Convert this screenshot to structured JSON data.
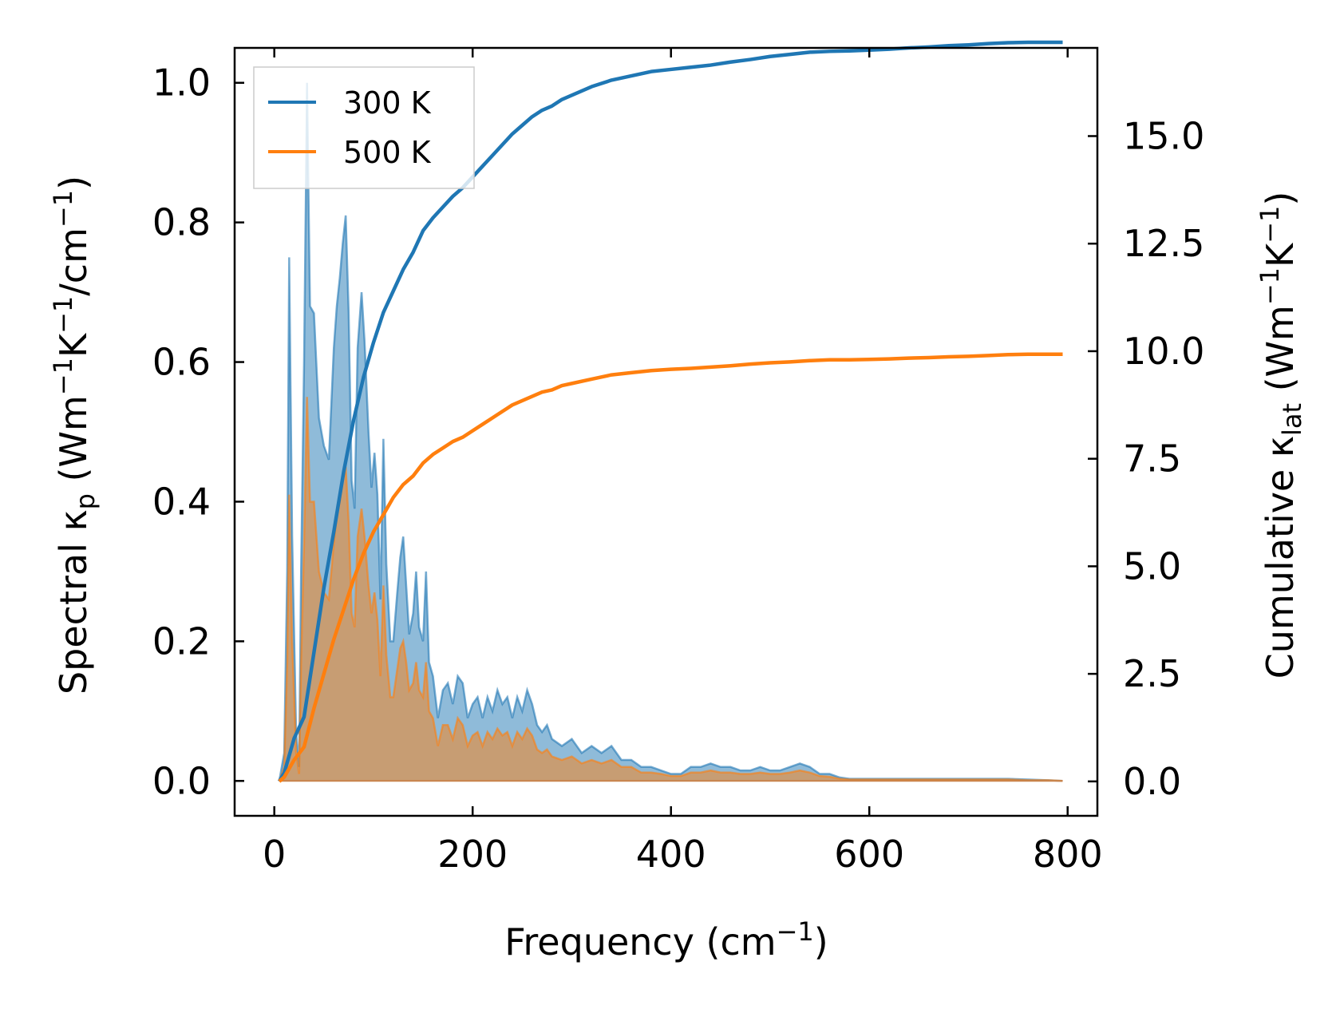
{
  "chart_data": {
    "type": "line",
    "title": "",
    "xlabel": {
      "text": "Frequency (cm",
      "sup": "−1",
      "tail": ")"
    },
    "ylabel_left": {
      "p1": "Spectral κ",
      "sub": "p",
      "p2": " (Wm",
      "s1": "−1",
      "p3": "K",
      "s2": "−1",
      "p4": "/cm",
      "s3": "−1",
      "p5": ")"
    },
    "ylabel_right": {
      "p1": "Cumulative κ",
      "sub": "lat",
      "p2": " (Wm",
      "s1": "−1",
      "p3": "K",
      "s2": "−1",
      "p4": ")"
    },
    "xlim": [
      -40,
      830
    ],
    "ylim_left": [
      -0.05,
      1.05
    ],
    "ylim_right": [
      -0.8,
      17.05
    ],
    "x_ticks": [
      0,
      200,
      400,
      600,
      800
    ],
    "x_tick_labels": [
      "0",
      "200",
      "400",
      "600",
      "800"
    ],
    "y_left_ticks": [
      0.0,
      0.2,
      0.4,
      0.6,
      0.8,
      1.0
    ],
    "y_left_tick_labels": [
      "0.0",
      "0.2",
      "0.4",
      "0.6",
      "0.8",
      "1.0"
    ],
    "y_right_ticks": [
      0.0,
      2.5,
      5.0,
      7.5,
      10.0,
      12.5,
      15.0
    ],
    "y_right_tick_labels": [
      "0.0",
      "2.5",
      "5.0",
      "7.5",
      "10.0",
      "12.5",
      "15.0"
    ],
    "legend": {
      "position": "upper-left",
      "entries": [
        "300 K",
        "500 K"
      ]
    },
    "series": [
      {
        "name": "300 K",
        "color": "#1f77b4",
        "fill_color": "#1f77b4",
        "spectral": {
          "x": [
            5,
            10,
            13,
            15,
            18,
            22,
            25,
            27,
            30,
            33,
            36,
            40,
            45,
            50,
            55,
            60,
            63,
            66,
            69,
            72,
            75,
            78,
            81,
            84,
            88,
            91,
            95,
            98,
            101,
            104,
            107,
            110,
            113,
            117,
            120,
            124,
            127,
            130,
            133,
            136,
            140,
            143,
            146,
            150,
            153,
            156,
            160,
            165,
            170,
            175,
            180,
            185,
            190,
            195,
            200,
            205,
            210,
            215,
            220,
            225,
            230,
            235,
            240,
            245,
            250,
            255,
            260,
            265,
            270,
            275,
            280,
            290,
            300,
            310,
            320,
            330,
            340,
            350,
            360,
            370,
            380,
            390,
            400,
            410,
            420,
            430,
            440,
            450,
            460,
            470,
            480,
            490,
            500,
            510,
            520,
            530,
            540,
            550,
            560,
            570,
            580,
            590,
            600,
            620,
            640,
            660,
            680,
            700,
            720,
            740,
            760,
            780,
            795
          ],
          "y": [
            0.0,
            0.04,
            0.3,
            0.75,
            0.35,
            0.07,
            0.02,
            0.3,
            0.6,
            1.0,
            0.68,
            0.67,
            0.52,
            0.48,
            0.46,
            0.62,
            0.68,
            0.72,
            0.77,
            0.81,
            0.67,
            0.43,
            0.39,
            0.62,
            0.7,
            0.63,
            0.5,
            0.42,
            0.47,
            0.41,
            0.26,
            0.49,
            0.31,
            0.2,
            0.2,
            0.27,
            0.32,
            0.35,
            0.28,
            0.21,
            0.24,
            0.3,
            0.22,
            0.2,
            0.3,
            0.17,
            0.15,
            0.09,
            0.13,
            0.14,
            0.11,
            0.15,
            0.14,
            0.09,
            0.11,
            0.12,
            0.09,
            0.12,
            0.1,
            0.13,
            0.11,
            0.12,
            0.09,
            0.12,
            0.1,
            0.13,
            0.11,
            0.08,
            0.07,
            0.08,
            0.06,
            0.05,
            0.06,
            0.04,
            0.05,
            0.04,
            0.05,
            0.03,
            0.03,
            0.02,
            0.02,
            0.015,
            0.01,
            0.01,
            0.02,
            0.02,
            0.025,
            0.02,
            0.02,
            0.015,
            0.015,
            0.02,
            0.015,
            0.015,
            0.02,
            0.025,
            0.02,
            0.01,
            0.01,
            0.005,
            0.003,
            0.003,
            0.003,
            0.003,
            0.003,
            0.003,
            0.003,
            0.003,
            0.003,
            0.003,
            0.002,
            0.001,
            0.0
          ]
        },
        "cumulative": {
          "x": [
            5,
            10,
            20,
            30,
            40,
            50,
            60,
            70,
            80,
            90,
            100,
            110,
            120,
            130,
            140,
            150,
            160,
            170,
            180,
            190,
            200,
            210,
            220,
            230,
            240,
            250,
            260,
            270,
            280,
            290,
            300,
            320,
            340,
            360,
            380,
            400,
            420,
            440,
            460,
            480,
            500,
            520,
            540,
            560,
            580,
            600,
            620,
            640,
            660,
            680,
            700,
            720,
            740,
            760,
            780,
            795
          ],
          "y": [
            0.0,
            0.2,
            1.0,
            1.5,
            3.0,
            4.5,
            5.8,
            7.2,
            8.4,
            9.4,
            10.2,
            10.9,
            11.4,
            11.9,
            12.3,
            12.8,
            13.1,
            13.35,
            13.6,
            13.8,
            14.05,
            14.3,
            14.55,
            14.8,
            15.05,
            15.25,
            15.45,
            15.6,
            15.7,
            15.85,
            15.95,
            16.15,
            16.3,
            16.4,
            16.5,
            16.55,
            16.6,
            16.65,
            16.72,
            16.78,
            16.85,
            16.9,
            16.95,
            16.97,
            16.98,
            17.0,
            17.02,
            17.05,
            17.07,
            17.1,
            17.12,
            17.15,
            17.17,
            17.18,
            17.18,
            17.18
          ]
        }
      },
      {
        "name": "500 K",
        "color": "#ff7f0e",
        "fill_color": "#ff7f0e",
        "spectral": {
          "x": [
            5,
            10,
            13,
            15,
            18,
            22,
            25,
            27,
            30,
            33,
            36,
            40,
            45,
            50,
            55,
            60,
            63,
            66,
            69,
            72,
            75,
            78,
            81,
            84,
            88,
            91,
            95,
            98,
            101,
            104,
            107,
            110,
            113,
            117,
            120,
            124,
            127,
            130,
            133,
            136,
            140,
            143,
            146,
            150,
            153,
            156,
            160,
            165,
            170,
            175,
            180,
            185,
            190,
            195,
            200,
            205,
            210,
            215,
            220,
            225,
            230,
            235,
            240,
            245,
            250,
            255,
            260,
            265,
            270,
            275,
            280,
            290,
            300,
            310,
            320,
            330,
            340,
            350,
            360,
            370,
            380,
            390,
            400,
            410,
            420,
            430,
            440,
            450,
            460,
            470,
            480,
            490,
            500,
            510,
            520,
            530,
            540,
            550,
            560,
            570,
            580,
            590,
            600,
            620,
            640,
            660,
            680,
            700,
            720,
            740,
            760,
            780,
            795
          ],
          "y": [
            0.0,
            0.02,
            0.17,
            0.41,
            0.2,
            0.04,
            0.01,
            0.17,
            0.34,
            0.55,
            0.4,
            0.4,
            0.3,
            0.27,
            0.26,
            0.34,
            0.38,
            0.4,
            0.43,
            0.45,
            0.37,
            0.24,
            0.22,
            0.35,
            0.39,
            0.35,
            0.28,
            0.24,
            0.27,
            0.23,
            0.15,
            0.28,
            0.18,
            0.12,
            0.12,
            0.16,
            0.19,
            0.2,
            0.17,
            0.13,
            0.14,
            0.17,
            0.13,
            0.12,
            0.17,
            0.1,
            0.09,
            0.05,
            0.08,
            0.08,
            0.06,
            0.09,
            0.08,
            0.05,
            0.065,
            0.07,
            0.05,
            0.07,
            0.06,
            0.075,
            0.065,
            0.07,
            0.05,
            0.07,
            0.06,
            0.075,
            0.065,
            0.045,
            0.04,
            0.045,
            0.035,
            0.03,
            0.035,
            0.025,
            0.03,
            0.025,
            0.03,
            0.02,
            0.02,
            0.012,
            0.012,
            0.01,
            0.007,
            0.007,
            0.012,
            0.012,
            0.015,
            0.012,
            0.012,
            0.01,
            0.01,
            0.012,
            0.01,
            0.01,
            0.012,
            0.015,
            0.012,
            0.007,
            0.006,
            0.003,
            0.002,
            0.002,
            0.002,
            0.002,
            0.002,
            0.002,
            0.002,
            0.002,
            0.002,
            0.002,
            0.001,
            0.001,
            0.0
          ]
        },
        "cumulative": {
          "x": [
            5,
            10,
            20,
            30,
            40,
            50,
            60,
            70,
            80,
            90,
            100,
            110,
            120,
            130,
            140,
            150,
            160,
            170,
            180,
            190,
            200,
            210,
            220,
            230,
            240,
            250,
            260,
            270,
            280,
            290,
            300,
            320,
            340,
            360,
            380,
            400,
            420,
            440,
            460,
            480,
            500,
            520,
            540,
            560,
            580,
            600,
            620,
            640,
            660,
            680,
            700,
            720,
            740,
            760,
            780,
            795
          ],
          "y": [
            0.0,
            0.1,
            0.5,
            0.8,
            1.7,
            2.5,
            3.3,
            4.0,
            4.7,
            5.3,
            5.8,
            6.2,
            6.6,
            6.9,
            7.1,
            7.4,
            7.6,
            7.75,
            7.9,
            8.0,
            8.15,
            8.3,
            8.45,
            8.6,
            8.75,
            8.85,
            8.95,
            9.05,
            9.1,
            9.2,
            9.25,
            9.35,
            9.45,
            9.5,
            9.55,
            9.58,
            9.6,
            9.63,
            9.66,
            9.7,
            9.73,
            9.75,
            9.78,
            9.8,
            9.8,
            9.81,
            9.82,
            9.84,
            9.85,
            9.87,
            9.88,
            9.9,
            9.92,
            9.93,
            9.93,
            9.93
          ]
        }
      }
    ]
  }
}
